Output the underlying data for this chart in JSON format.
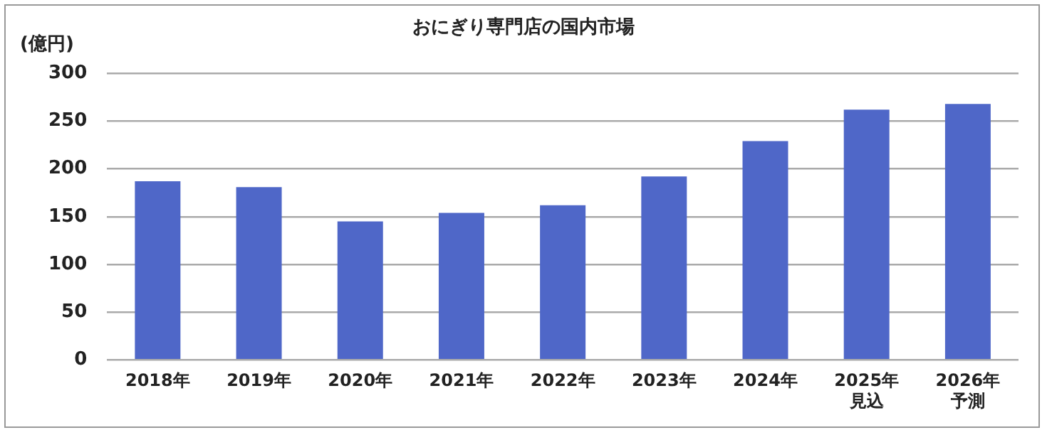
{
  "chart_data": {
    "type": "bar",
    "title": "おにぎり専門店の国内市場",
    "ylabel": "(億円)",
    "categories": [
      "2018年",
      "2019年",
      "2020年",
      "2021年",
      "2022年",
      "2023年",
      "2024年",
      "2025年見込",
      "2026年予測"
    ],
    "values": [
      187,
      181,
      145,
      154,
      162,
      192,
      229,
      262,
      268
    ],
    "color": "#4f67c8",
    "ylim": [
      0,
      300
    ],
    "yticks": [
      0,
      50,
      100,
      150,
      200,
      250,
      300
    ],
    "grid": "y",
    "legend": false
  }
}
